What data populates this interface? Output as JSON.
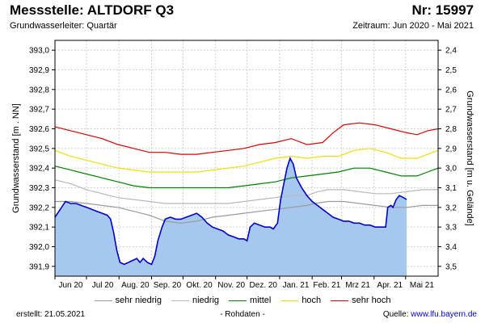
{
  "header": {
    "title": "Messstelle: ALTDORF Q3",
    "nr": "Nr: 15997",
    "subtitle": "Grundwasserleiter: Quartär",
    "period": "Zeitraum: Jun 2020 - Mai 2021"
  },
  "footer": {
    "created_label": "erstellt:",
    "created_date": "21.05.2021",
    "raw_note": "- Rohdaten -",
    "source_label": "Quelle:",
    "source_link": "www.lfu.bayern.de"
  },
  "chart_data": {
    "type": "area",
    "x_start": "2020-06-01",
    "ylabel_left": "Grundwasserstand [m . NN]",
    "ylabel_right": "Grundwasserstand [m u. Gelände]",
    "ylim": [
      391.85,
      393.05
    ],
    "yticks_left": [
      "393,0",
      "392,9",
      "392,8",
      "392,7",
      "392,6",
      "392,5",
      "392,4",
      "392,3",
      "392,2",
      "392,1",
      "392,0",
      "391,9"
    ],
    "yticks_right": [
      "2,4",
      "2,5",
      "2,6",
      "2,7",
      "2,8",
      "2,9",
      "3,0",
      "3,1",
      "3,2",
      "3,3",
      "3,4",
      "3,5"
    ],
    "xticks": [
      "Jun 20",
      "Jul 20",
      "Aug. 20",
      "Sep. 20",
      "Okt. 20",
      "Nov. 20",
      "Dez. 20",
      "Jan. 21",
      "Feb. 21",
      "Mrz 21",
      "Apr. 21",
      "Mai 21"
    ],
    "grid": true,
    "legend_position": "bottom",
    "colors": {
      "area_fill": "#a7c8ee",
      "measured_line": "#0000cc",
      "sehr_niedrig": "#9a9a9a",
      "niedrig": "#b8b8b8",
      "mittel": "#008000",
      "hoch": "#f0e000",
      "sehr_hoch": "#dd0000"
    },
    "legend": [
      {
        "key": "sehr_niedrig",
        "label": "sehr niedrig"
      },
      {
        "key": "niedrig",
        "label": "niedrig"
      },
      {
        "key": "mittel",
        "label": "mittel"
      },
      {
        "key": "hoch",
        "label": "hoch"
      },
      {
        "key": "sehr_hoch",
        "label": "sehr hoch"
      }
    ],
    "series": [
      {
        "key": "sehr_niedrig",
        "points": [
          [
            0,
            392.23
          ],
          [
            15,
            392.23
          ],
          [
            30,
            392.22
          ],
          [
            45,
            392.21
          ],
          [
            60,
            392.2
          ],
          [
            75,
            392.18
          ],
          [
            90,
            392.16
          ],
          [
            105,
            392.13
          ],
          [
            120,
            392.12
          ],
          [
            135,
            392.13
          ],
          [
            150,
            392.15
          ],
          [
            165,
            392.16
          ],
          [
            180,
            392.17
          ],
          [
            195,
            392.18
          ],
          [
            210,
            392.19
          ],
          [
            225,
            392.2
          ],
          [
            240,
            392.21
          ],
          [
            248,
            392.22
          ],
          [
            260,
            392.23
          ],
          [
            275,
            392.23
          ],
          [
            290,
            392.22
          ],
          [
            305,
            392.21
          ],
          [
            320,
            392.2
          ],
          [
            335,
            392.2
          ],
          [
            350,
            392.21
          ],
          [
            365,
            392.21
          ]
        ]
      },
      {
        "key": "niedrig",
        "points": [
          [
            0,
            392.34
          ],
          [
            15,
            392.32
          ],
          [
            30,
            392.29
          ],
          [
            45,
            392.27
          ],
          [
            60,
            392.25
          ],
          [
            75,
            392.24
          ],
          [
            90,
            392.23
          ],
          [
            105,
            392.22
          ],
          [
            120,
            392.22
          ],
          [
            135,
            392.22
          ],
          [
            150,
            392.22
          ],
          [
            165,
            392.22
          ],
          [
            180,
            392.23
          ],
          [
            195,
            392.24
          ],
          [
            210,
            392.25
          ],
          [
            225,
            392.26
          ],
          [
            240,
            392.26
          ],
          [
            250,
            392.28
          ],
          [
            260,
            392.29
          ],
          [
            275,
            392.29
          ],
          [
            290,
            392.28
          ],
          [
            305,
            392.27
          ],
          [
            320,
            392.27
          ],
          [
            335,
            392.28
          ],
          [
            350,
            392.29
          ],
          [
            365,
            392.29
          ]
        ]
      },
      {
        "key": "mittel",
        "points": [
          [
            0,
            392.41
          ],
          [
            15,
            392.39
          ],
          [
            30,
            392.37
          ],
          [
            45,
            392.35
          ],
          [
            60,
            392.33
          ],
          [
            75,
            392.31
          ],
          [
            90,
            392.3
          ],
          [
            105,
            392.3
          ],
          [
            120,
            392.3
          ],
          [
            135,
            392.3
          ],
          [
            150,
            392.3
          ],
          [
            165,
            392.3
          ],
          [
            180,
            392.31
          ],
          [
            195,
            392.32
          ],
          [
            210,
            392.33
          ],
          [
            225,
            392.35
          ],
          [
            240,
            392.36
          ],
          [
            255,
            392.37
          ],
          [
            270,
            392.38
          ],
          [
            285,
            392.4
          ],
          [
            300,
            392.4
          ],
          [
            315,
            392.38
          ],
          [
            330,
            392.36
          ],
          [
            345,
            392.36
          ],
          [
            355,
            392.38
          ],
          [
            365,
            392.4
          ]
        ]
      },
      {
        "key": "hoch",
        "points": [
          [
            0,
            392.49
          ],
          [
            15,
            392.46
          ],
          [
            30,
            392.44
          ],
          [
            45,
            392.42
          ],
          [
            60,
            392.4
          ],
          [
            75,
            392.39
          ],
          [
            90,
            392.38
          ],
          [
            105,
            392.38
          ],
          [
            120,
            392.38
          ],
          [
            135,
            392.38
          ],
          [
            150,
            392.39
          ],
          [
            165,
            392.4
          ],
          [
            180,
            392.41
          ],
          [
            195,
            392.43
          ],
          [
            210,
            392.45
          ],
          [
            225,
            392.46
          ],
          [
            240,
            392.45
          ],
          [
            255,
            392.46
          ],
          [
            270,
            392.46
          ],
          [
            285,
            392.49
          ],
          [
            300,
            392.5
          ],
          [
            315,
            392.48
          ],
          [
            330,
            392.45
          ],
          [
            345,
            392.45
          ],
          [
            355,
            392.47
          ],
          [
            365,
            392.49
          ]
        ]
      },
      {
        "key": "sehr_hoch",
        "points": [
          [
            0,
            392.61
          ],
          [
            15,
            392.59
          ],
          [
            30,
            392.57
          ],
          [
            45,
            392.55
          ],
          [
            60,
            392.52
          ],
          [
            75,
            392.5
          ],
          [
            90,
            392.48
          ],
          [
            105,
            392.48
          ],
          [
            120,
            392.47
          ],
          [
            135,
            392.47
          ],
          [
            150,
            392.48
          ],
          [
            165,
            392.49
          ],
          [
            180,
            392.5
          ],
          [
            195,
            392.52
          ],
          [
            210,
            392.53
          ],
          [
            225,
            392.55
          ],
          [
            240,
            392.52
          ],
          [
            255,
            392.53
          ],
          [
            265,
            392.58
          ],
          [
            275,
            392.62
          ],
          [
            290,
            392.63
          ],
          [
            305,
            392.62
          ],
          [
            320,
            392.6
          ],
          [
            335,
            392.58
          ],
          [
            345,
            392.57
          ],
          [
            355,
            392.59
          ],
          [
            365,
            392.6
          ]
        ]
      },
      {
        "key": "measured",
        "points": [
          [
            0,
            392.15
          ],
          [
            5,
            392.19
          ],
          [
            10,
            392.23
          ],
          [
            15,
            392.22
          ],
          [
            20,
            392.22
          ],
          [
            25,
            392.21
          ],
          [
            30,
            392.2
          ],
          [
            35,
            392.19
          ],
          [
            40,
            392.18
          ],
          [
            45,
            392.17
          ],
          [
            50,
            392.16
          ],
          [
            53,
            392.14
          ],
          [
            56,
            392.07
          ],
          [
            59,
            391.98
          ],
          [
            62,
            391.92
          ],
          [
            66,
            391.91
          ],
          [
            70,
            391.92
          ],
          [
            74,
            391.93
          ],
          [
            78,
            391.94
          ],
          [
            81,
            391.92
          ],
          [
            84,
            391.94
          ],
          [
            88,
            391.92
          ],
          [
            92,
            391.91
          ],
          [
            95,
            391.95
          ],
          [
            98,
            392.03
          ],
          [
            102,
            392.1
          ],
          [
            105,
            392.14
          ],
          [
            110,
            392.15
          ],
          [
            115,
            392.14
          ],
          [
            120,
            392.14
          ],
          [
            125,
            392.15
          ],
          [
            130,
            392.16
          ],
          [
            135,
            392.17
          ],
          [
            140,
            392.15
          ],
          [
            145,
            392.12
          ],
          [
            150,
            392.1
          ],
          [
            155,
            392.09
          ],
          [
            160,
            392.08
          ],
          [
            165,
            392.06
          ],
          [
            170,
            392.05
          ],
          [
            175,
            392.04
          ],
          [
            180,
            392.04
          ],
          [
            183,
            392.03
          ],
          [
            186,
            392.1
          ],
          [
            190,
            392.12
          ],
          [
            195,
            392.11
          ],
          [
            200,
            392.1
          ],
          [
            205,
            392.1
          ],
          [
            208,
            392.09
          ],
          [
            212,
            392.12
          ],
          [
            215,
            392.24
          ],
          [
            218,
            392.32
          ],
          [
            221,
            392.4
          ],
          [
            224,
            392.45
          ],
          [
            227,
            392.42
          ],
          [
            230,
            392.35
          ],
          [
            235,
            392.3
          ],
          [
            240,
            392.26
          ],
          [
            245,
            392.23
          ],
          [
            250,
            392.21
          ],
          [
            255,
            392.19
          ],
          [
            260,
            392.17
          ],
          [
            265,
            392.15
          ],
          [
            270,
            392.14
          ],
          [
            275,
            392.13
          ],
          [
            280,
            392.13
          ],
          [
            285,
            392.12
          ],
          [
            290,
            392.12
          ],
          [
            295,
            392.11
          ],
          [
            300,
            392.11
          ],
          [
            305,
            392.1
          ],
          [
            310,
            392.1
          ],
          [
            315,
            392.1
          ],
          [
            317,
            392.2
          ],
          [
            320,
            392.21
          ],
          [
            322,
            392.2
          ],
          [
            325,
            392.24
          ],
          [
            328,
            392.26
          ],
          [
            332,
            392.25
          ],
          [
            335,
            392.24
          ]
        ]
      }
    ]
  }
}
